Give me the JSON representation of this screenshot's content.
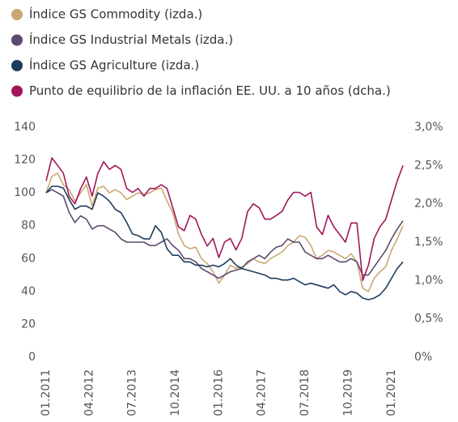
{
  "chart_data": {
    "type": "line",
    "x": [
      "01.2011",
      "03.2011",
      "05.2011",
      "07.2011",
      "09.2011",
      "11.2011",
      "01.2012",
      "03.2012",
      "05.2012",
      "07.2012",
      "09.2012",
      "11.2012",
      "01.2013",
      "03.2013",
      "05.2013",
      "07.2013",
      "09.2013",
      "11.2013",
      "01.2014",
      "03.2014",
      "05.2014",
      "07.2014",
      "09.2014",
      "11.2014",
      "01.2015",
      "03.2015",
      "05.2015",
      "07.2015",
      "09.2015",
      "11.2015",
      "01.2016",
      "03.2016",
      "05.2016",
      "07.2016",
      "09.2016",
      "11.2016",
      "01.2017",
      "03.2017",
      "05.2017",
      "07.2017",
      "09.2017",
      "11.2017",
      "01.2018",
      "03.2018",
      "05.2018",
      "07.2018",
      "09.2018",
      "11.2018",
      "01.2019",
      "03.2019",
      "05.2019",
      "07.2019",
      "09.2019",
      "11.2019",
      "01.2020",
      "03.2020",
      "05.2020",
      "07.2020",
      "09.2020",
      "11.2020",
      "01.2021",
      "03.2021",
      "05.2021"
    ],
    "xlim": [
      "01.2011",
      "05.2021"
    ],
    "xticks": [
      "01.2011",
      "04.2012",
      "07.2013",
      "10.2014",
      "01.2016",
      "04.2017",
      "07.2018",
      "10.2019",
      "01.2021"
    ],
    "ylim": [
      0,
      140
    ],
    "yticks": [
      0,
      20,
      40,
      60,
      80,
      100,
      120,
      140
    ],
    "y2lim": [
      0,
      3
    ],
    "y2ticks": [
      {
        "value": 0,
        "label": "0%"
      },
      {
        "value": 0.5,
        "label": "0,5%"
      },
      {
        "value": 1,
        "label": "1,0%"
      },
      {
        "value": 1.5,
        "label": "1,5%"
      },
      {
        "value": 2,
        "label": "2,0%"
      },
      {
        "value": 2.5,
        "label": "2,5%"
      },
      {
        "value": 3,
        "label": "3,0%"
      }
    ],
    "series": [
      {
        "name": "Índice GS Commodity (izda.)",
        "color": "#c9a872",
        "values": [
          100,
          110,
          112,
          105,
          102,
          95,
          100,
          105,
          92,
          103,
          104,
          100,
          102,
          100,
          96,
          98,
          100,
          99,
          100,
          102,
          103,
          95,
          88,
          75,
          68,
          66,
          67,
          60,
          57,
          52,
          45,
          50,
          56,
          54,
          55,
          57,
          60,
          58,
          57,
          60,
          62,
          64,
          68,
          70,
          74,
          73,
          68,
          60,
          62,
          65,
          64,
          62,
          60,
          63,
          58,
          42,
          40,
          48,
          52,
          55,
          65,
          72,
          80
        ]
      },
      {
        "name": "Índice GS Industrial Metals (izda.)",
        "color": "#5e4a6e",
        "values": [
          100,
          102,
          100,
          98,
          88,
          82,
          86,
          84,
          78,
          80,
          80,
          78,
          76,
          72,
          70,
          70,
          70,
          70,
          68,
          68,
          70,
          72,
          68,
          65,
          60,
          60,
          58,
          54,
          52,
          50,
          48,
          50,
          52,
          53,
          54,
          58,
          60,
          62,
          60,
          64,
          67,
          68,
          72,
          70,
          70,
          64,
          62,
          60,
          60,
          62,
          60,
          58,
          58,
          60,
          58,
          50,
          50,
          55,
          60,
          65,
          72,
          78,
          83
        ]
      },
      {
        "name": "Índice GS Agriculture (izda.)",
        "color": "#1e3c5e",
        "values": [
          100,
          104,
          104,
          103,
          96,
          90,
          92,
          92,
          90,
          100,
          98,
          95,
          90,
          88,
          82,
          75,
          74,
          72,
          72,
          80,
          76,
          66,
          62,
          62,
          58,
          58,
          56,
          56,
          55,
          56,
          55,
          57,
          60,
          56,
          54,
          53,
          52,
          51,
          50,
          48,
          48,
          47,
          47,
          48,
          46,
          44,
          45,
          44,
          43,
          42,
          44,
          40,
          38,
          40,
          39,
          36,
          35,
          36,
          38,
          42,
          48,
          54,
          58
        ]
      },
      {
        "name": "Punto de equilibrio de la inflación EE. UU. a 10 años (dcha.)",
        "color": "#a3155b",
        "axis": "y2",
        "values": [
          2.3,
          2.6,
          2.5,
          2.4,
          2.1,
          2.0,
          2.2,
          2.35,
          2.1,
          2.4,
          2.55,
          2.45,
          2.5,
          2.45,
          2.2,
          2.15,
          2.2,
          2.1,
          2.2,
          2.2,
          2.25,
          2.2,
          1.95,
          1.7,
          1.65,
          1.85,
          1.8,
          1.6,
          1.45,
          1.55,
          1.3,
          1.5,
          1.55,
          1.4,
          1.55,
          1.9,
          2.0,
          1.95,
          1.8,
          1.8,
          1.85,
          1.9,
          2.05,
          2.15,
          2.15,
          2.1,
          2.15,
          1.7,
          1.6,
          1.85,
          1.7,
          1.6,
          1.5,
          1.75,
          1.75,
          1.0,
          1.2,
          1.55,
          1.7,
          1.8,
          2.05,
          2.3,
          2.5
        ]
      }
    ]
  }
}
